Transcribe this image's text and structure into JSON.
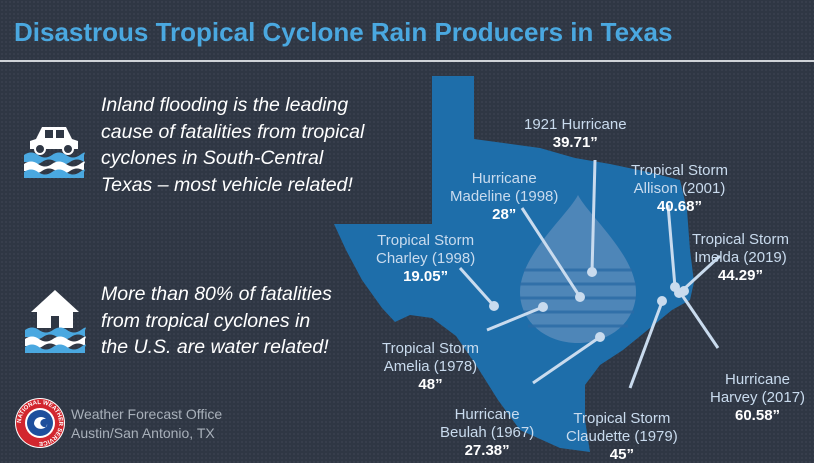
{
  "slide": {
    "title": "Disastrous Tropical Cyclone Rain Producers in Texas",
    "points": [
      {
        "text": "Inland flooding is the leading\ncause of fatalities from tropical\ncyclones in South-Central\nTexas – most vehicle related!",
        "icon": "car-flood-icon"
      },
      {
        "text": "More than 80% of fatalities\nfrom tropical cyclones in\nthe U.S. are water related!",
        "icon": "house-flood-icon"
      }
    ],
    "storms": [
      {
        "name": "1921 Hurricane",
        "value": "39.71”"
      },
      {
        "name": "Hurricane\nMadeline (1998)",
        "value": "28”"
      },
      {
        "name": "Tropical Storm\nAllison (2001)",
        "value": "40.68”"
      },
      {
        "name": "Tropical Storm\nCharley (1998)",
        "value": "19.05”"
      },
      {
        "name": "Tropical Storm\nImelda (2019)",
        "value": "44.29”"
      },
      {
        "name": "Tropical Storm\nAmelia (1978)",
        "value": "48”"
      },
      {
        "name": "Hurricane\nHarvey (2017)",
        "value": "60.58”"
      },
      {
        "name": "Hurricane\nBeulah (1967)",
        "value": "27.38”"
      },
      {
        "name": "Tropical Storm\nClaudette (1979)",
        "value": "45”"
      }
    ],
    "office": {
      "text": "Weather Forecast Office\nAustin/San Antonio, TX",
      "logo_text": "NATIONAL WEATHER SERVICE",
      "logo": "nws-logo"
    },
    "map_icon": "texas-map",
    "colors": {
      "title": "#4aa8e0",
      "map": "#1e6eaa",
      "drop": "#4e86b8",
      "label": "#c9dbee",
      "background": "#2f3744"
    }
  }
}
